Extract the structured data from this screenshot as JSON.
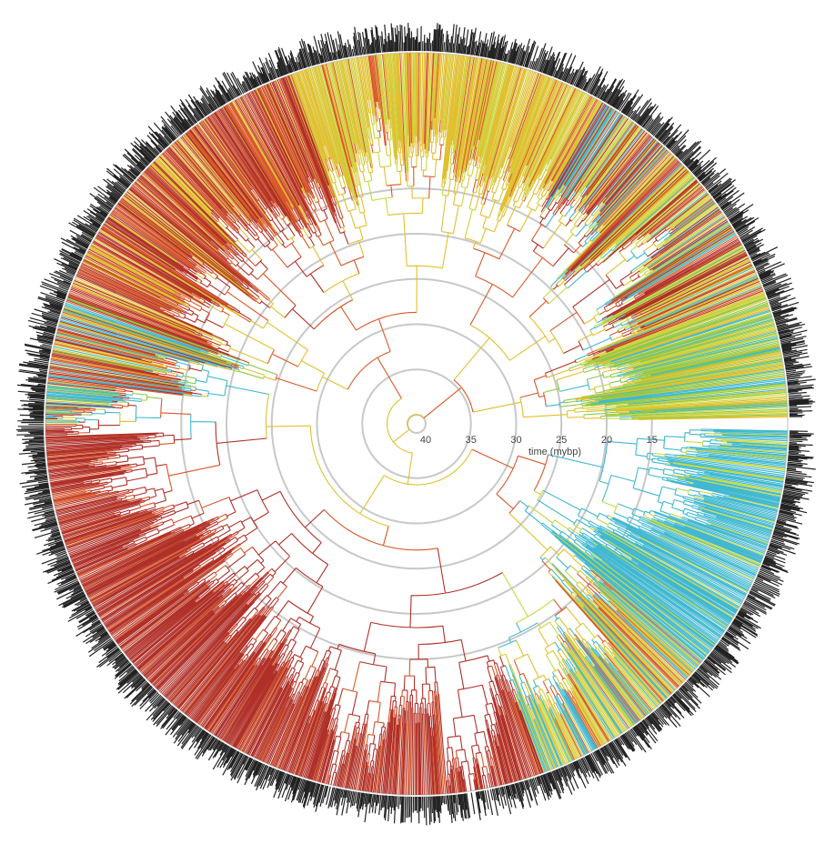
{
  "time_axis": {
    "label": "time (mybp)",
    "ticks": [
      40,
      35,
      30,
      25,
      20,
      15
    ],
    "lim": [
      40,
      0
    ]
  }
}
